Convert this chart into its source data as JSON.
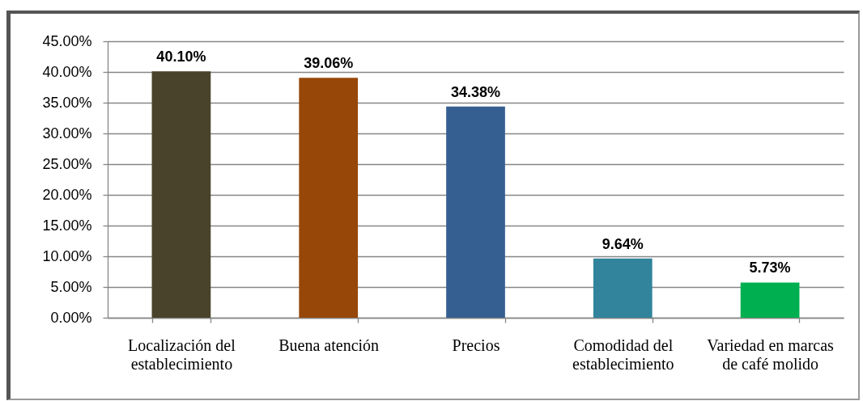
{
  "chart_data": {
    "type": "bar",
    "categories": [
      "Localización del establecimiento",
      "Buena atención",
      "Precios",
      "Comodidad del establecimiento",
      "Variedad en marcas de café molido"
    ],
    "values": [
      40.1,
      39.06,
      34.38,
      9.64,
      5.73
    ],
    "colors": [
      "#4a432b",
      "#974708",
      "#365f91",
      "#31849b",
      "#00b050"
    ],
    "value_labels": [
      "40.10%",
      "39.06%",
      "34.38%",
      "9.64%",
      "5.73%"
    ],
    "ylim": [
      0,
      45
    ],
    "yticks": [
      {
        "value": 0,
        "label": "0.00%"
      },
      {
        "value": 5,
        "label": "5.00%"
      },
      {
        "value": 10,
        "label": "10.00%"
      },
      {
        "value": 15,
        "label": "15.00%"
      },
      {
        "value": 20,
        "label": "20.00%"
      },
      {
        "value": 25,
        "label": "25.00%"
      },
      {
        "value": 30,
        "label": "30.00%"
      },
      {
        "value": 35,
        "label": "35.00%"
      },
      {
        "value": 40,
        "label": "40.00%"
      },
      {
        "value": 45,
        "label": "45.00%"
      }
    ],
    "grid": "y"
  }
}
